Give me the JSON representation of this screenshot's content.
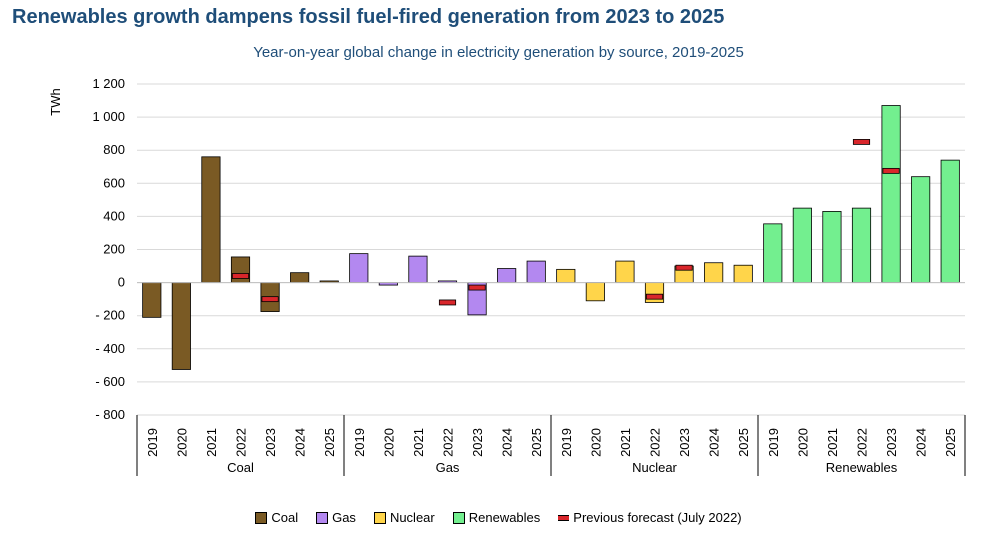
{
  "chart_data": {
    "type": "bar",
    "title": "Renewables growth dampens fossil fuel-fired generation from 2023 to 2025",
    "subtitle": "Year-on-year global change in electricity generation by source, 2019-2025",
    "ylabel": "TWh",
    "ylim": [
      -800,
      1200
    ],
    "yticks": [
      1200,
      1000,
      800,
      600,
      400,
      200,
      0,
      -200,
      -400,
      -600,
      -800
    ],
    "ytick_labels": [
      "1 200",
      "1 000",
      "800",
      "600",
      "400",
      "200",
      "0",
      "- 200",
      "- 400",
      "- 600",
      "- 800"
    ],
    "groups": [
      {
        "name": "Coal",
        "color": "#7a5a24",
        "years": [
          "2019",
          "2020",
          "2021",
          "2022",
          "2023",
          "2024",
          "2025"
        ],
        "values": [
          -210,
          -525,
          760,
          155,
          -175,
          60,
          10
        ]
      },
      {
        "name": "Gas",
        "color": "#b388f0",
        "years": [
          "2019",
          "2020",
          "2021",
          "2022",
          "2023",
          "2024",
          "2025"
        ],
        "values": [
          175,
          -15,
          160,
          10,
          -195,
          85,
          130
        ]
      },
      {
        "name": "Nuclear",
        "color": "#ffd54a",
        "years": [
          "2019",
          "2020",
          "2021",
          "2022",
          "2023",
          "2024",
          "2025"
        ],
        "values": [
          80,
          -110,
          130,
          -120,
          100,
          120,
          105
        ]
      },
      {
        "name": "Renewables",
        "color": "#73ef8f",
        "years": [
          "2019",
          "2020",
          "2021",
          "2022",
          "2023",
          "2024",
          "2025"
        ],
        "values": [
          355,
          450,
          430,
          450,
          1070,
          640,
          740
        ]
      }
    ],
    "previous_forecast": {
      "name": "Previous forecast (July 2022)",
      "color": "#d9262b",
      "points": [
        {
          "group": "Coal",
          "year": "2022",
          "value": 40
        },
        {
          "group": "Coal",
          "year": "2023",
          "value": -100
        },
        {
          "group": "Gas",
          "year": "2022",
          "value": -120
        },
        {
          "group": "Gas",
          "year": "2023",
          "value": -30
        },
        {
          "group": "Nuclear",
          "year": "2022",
          "value": -85
        },
        {
          "group": "Nuclear",
          "year": "2023",
          "value": 90
        },
        {
          "group": "Renewables",
          "year": "2022",
          "value": 850
        },
        {
          "group": "Renewables",
          "year": "2023",
          "value": 675
        }
      ]
    },
    "legend": [
      "Coal",
      "Gas",
      "Nuclear",
      "Renewables",
      "Previous forecast (July 2022)"
    ],
    "legend_position": "bottom",
    "grid": true
  }
}
